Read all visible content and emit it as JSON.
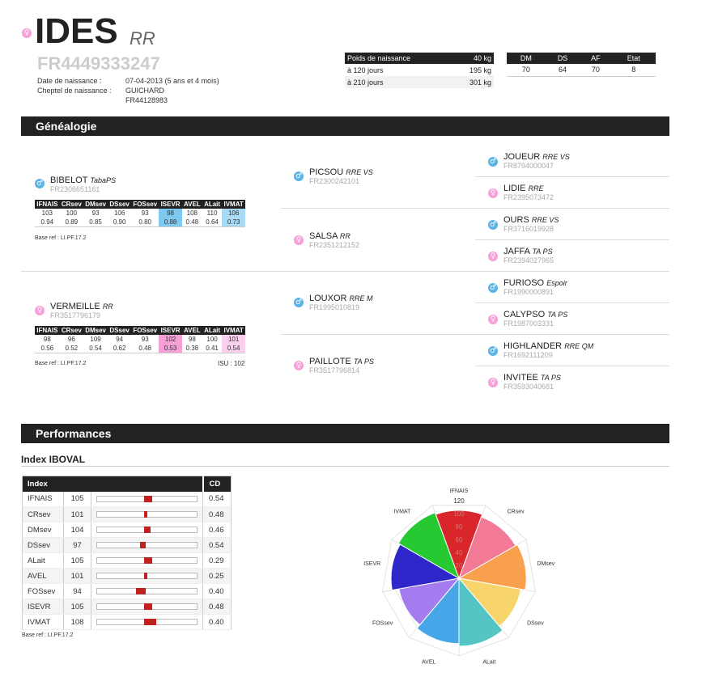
{
  "animal": {
    "sex_symbol": "♀",
    "name": "IDES",
    "breed": "RR",
    "id": "FR4449333247",
    "birth_label": "Date de naissance :",
    "birth_value": "07-04-2013 (5 ans et 4 mois)",
    "cheptel_label": "Cheptel de naissance :",
    "cheptel_name": "GUICHARD",
    "cheptel_id": "FR44128983"
  },
  "weights": {
    "header_label": "Poids de naissance",
    "header_value": "40 kg",
    "rows": [
      {
        "label": "à 120 jours",
        "value": "195 kg"
      },
      {
        "label": "à 210 jours",
        "value": "301 kg"
      }
    ]
  },
  "scores": {
    "headers": [
      "DM",
      "DS",
      "AF",
      "Etat"
    ],
    "values": [
      "70",
      "64",
      "70",
      "8"
    ]
  },
  "genealogy": {
    "title": "Généalogie",
    "father": {
      "symbol": "♂",
      "name": "BIBELOT",
      "breed": "TabaPS",
      "id": "FR2306651161",
      "headers": [
        "IFNAIS",
        "CRsev",
        "DMsev",
        "DSsev",
        "FOSsev",
        "ISEVR",
        "AVEL",
        "ALait",
        "IVMAT"
      ],
      "row1": [
        "103",
        "100",
        "93",
        "106",
        "93",
        "98",
        "108",
        "110",
        "106"
      ],
      "row2": [
        "0.94",
        "0.89",
        "0.85",
        "0.90",
        "0.80",
        "0.88",
        "0.48",
        "0.64",
        "0.73"
      ],
      "base": "Base ref : LI.PF.17.2"
    },
    "mother": {
      "symbol": "♀",
      "name": "VERMEILLE",
      "breed": "RR",
      "id": "FR3517796179",
      "headers": [
        "IFNAIS",
        "CRsev",
        "DMsev",
        "DSsev",
        "FOSsev",
        "ISEVR",
        "AVEL",
        "ALait",
        "IVMAT"
      ],
      "row1": [
        "98",
        "96",
        "109",
        "94",
        "93",
        "102",
        "98",
        "100",
        "101"
      ],
      "row2": [
        "0.56",
        "0.52",
        "0.54",
        "0.62",
        "0.48",
        "0.53",
        "0.38",
        "0.41",
        "0.54"
      ],
      "base": "Base ref : LI.PF.17.2",
      "isu": "ISU : 102"
    },
    "grandparents": [
      {
        "symbol": "♂",
        "name": "PICSOU",
        "breed": "RRE VS",
        "id": "FR2300242101"
      },
      {
        "symbol": "♀",
        "name": "SALSA",
        "breed": "RR",
        "id": "FR2351212152"
      },
      {
        "symbol": "♂",
        "name": "LOUXOR",
        "breed": "RRE M",
        "id": "FR1995010819"
      },
      {
        "symbol": "♀",
        "name": "PAILLOTE",
        "breed": "TA PS",
        "id": "FR3517796814"
      }
    ],
    "great_grandparents": [
      {
        "symbol": "♂",
        "name": "JOUEUR",
        "breed": "RRE VS",
        "id": "FR8794000047"
      },
      {
        "symbol": "♀",
        "name": "LIDIE",
        "breed": "RRE",
        "id": "FR2395073472"
      },
      {
        "symbol": "♂",
        "name": "OURS",
        "breed": "RRE VS",
        "id": "FR3716019928"
      },
      {
        "symbol": "♀",
        "name": "JAFFA",
        "breed": "TA PS",
        "id": "FR2394027965"
      },
      {
        "symbol": "♂",
        "name": "FURIOSO",
        "breed": "Espoir",
        "id": "FR1990000891"
      },
      {
        "symbol": "♀",
        "name": "CALYPSO",
        "breed": "TA PS",
        "id": "FR1987003331"
      },
      {
        "symbol": "♂",
        "name": "HIGHLANDER",
        "breed": "RRE QM",
        "id": "FR1692111209"
      },
      {
        "symbol": "♀",
        "name": "INVITEE",
        "breed": "TA PS",
        "id": "FR3593040681"
      }
    ]
  },
  "performances": {
    "title": "Performances",
    "subtitle": "Index IBOVAL",
    "col_index": "Index",
    "col_cd": "CD",
    "rows": [
      {
        "name": "IFNAIS",
        "value": "105",
        "level": 105,
        "cd": "0.54"
      },
      {
        "name": "CRsev",
        "value": "101",
        "level": 101,
        "cd": "0.48"
      },
      {
        "name": "DMsev",
        "value": "104",
        "level": 104,
        "cd": "0.46"
      },
      {
        "name": "DSsev",
        "value": "97",
        "level": 97,
        "cd": "0.54"
      },
      {
        "name": "ALait",
        "value": "105",
        "level": 105,
        "cd": "0.29"
      },
      {
        "name": "AVEL",
        "value": "101",
        "level": 101,
        "cd": "0.25"
      },
      {
        "name": "FOSsev",
        "value": "94",
        "level": 94,
        "cd": "0.40"
      },
      {
        "name": "ISEVR",
        "value": "105",
        "level": 105,
        "cd": "0.48"
      },
      {
        "name": "IVMAT",
        "value": "108",
        "level": 108,
        "cd": "0.40"
      }
    ],
    "base": "Base ref : LI.PF.17.2"
  },
  "chart_data": {
    "type": "polar-area",
    "categories": [
      "IFNAIS",
      "CRsev",
      "DMsev",
      "DSsev",
      "ALait",
      "AVEL",
      "FOSsev",
      "ISEVR",
      "IVMAT"
    ],
    "values": [
      105,
      101,
      104,
      97,
      105,
      101,
      94,
      105,
      108
    ],
    "colors": [
      "#d9262b",
      "#f27a97",
      "#f8a04e",
      "#f8d56a",
      "#55c4c4",
      "#46a6e8",
      "#a47cf0",
      "#2f27c9",
      "#27c933"
    ],
    "rmax": 120,
    "ticks": [
      "120",
      "100",
      "80",
      "60",
      "40",
      "20"
    ],
    "tick_values": [
      120,
      100,
      80,
      60,
      40,
      20
    ]
  }
}
